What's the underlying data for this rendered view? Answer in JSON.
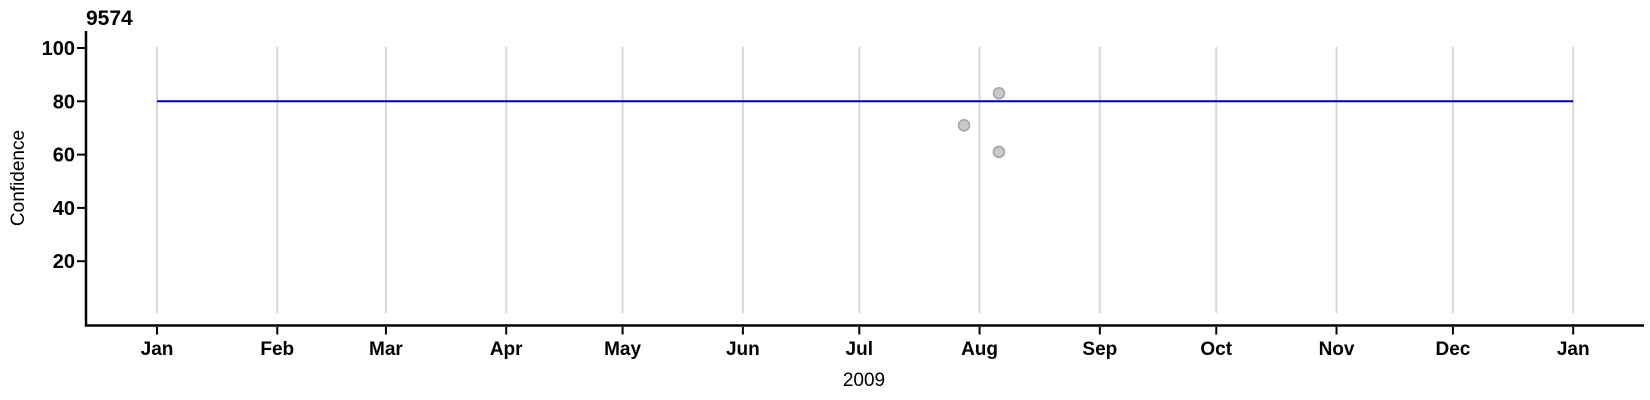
{
  "chart_data": {
    "type": "scatter",
    "title": "9574",
    "xlabel": "2009",
    "ylabel": "Confidence",
    "x_tick_labels": [
      "Jan",
      "Feb",
      "Mar",
      "Apr",
      "May",
      "Jun",
      "Jul",
      "Aug",
      "Sep",
      "Oct",
      "Nov",
      "Dec",
      "Jan"
    ],
    "month_start_days": [
      0,
      31,
      59,
      90,
      120,
      151,
      181,
      212,
      243,
      273,
      304,
      334,
      365
    ],
    "y_ticks": [
      20,
      40,
      60,
      80,
      100
    ],
    "ylim": [
      0,
      105
    ],
    "x_range_days": [
      0,
      365
    ],
    "grid": "vertical gridline at each month boundary",
    "legend": "none",
    "reference_line": {
      "value": 80,
      "start_day": 0,
      "end_day": 365,
      "color": "#0000B4"
    },
    "points": [
      {
        "day_of_year": 208,
        "approx_date": "2009-07-28",
        "value": 71
      },
      {
        "day_of_year": 217,
        "approx_date": "2009-08-05",
        "value": 83
      },
      {
        "day_of_year": 217,
        "approx_date": "2009-08-05",
        "value": 61
      }
    ],
    "colors": {
      "point_fill": "#C9C9C9",
      "point_stroke": "#A3A3A3",
      "gridline": "#D8D8D8",
      "axis": "#000000",
      "reference_line": "#0000B4"
    }
  }
}
